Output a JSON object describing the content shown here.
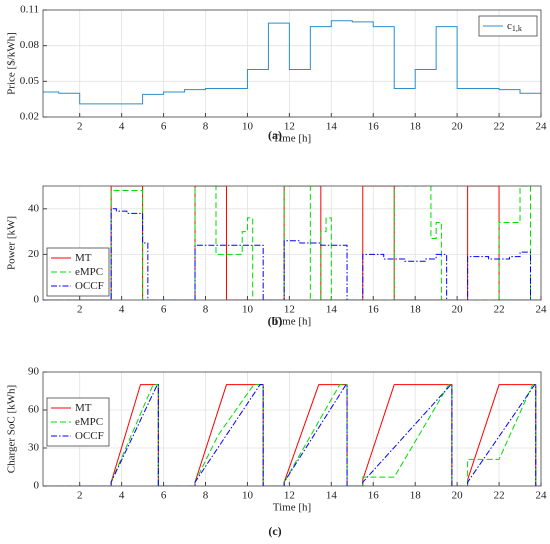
{
  "chart_data": [
    {
      "type": "line",
      "caption": "(a)",
      "xlabel": "Time [h]",
      "ylabel": "Price [$/kWh]",
      "xlim": [
        0.25,
        24
      ],
      "xticks": [
        2,
        4,
        6,
        8,
        10,
        12,
        14,
        16,
        18,
        20,
        22,
        24
      ],
      "ylim": [
        0.02,
        0.11
      ],
      "yticks": [
        0.02,
        0.05,
        0.08,
        0.11
      ],
      "grid": true,
      "legend_loc": "upper right",
      "series": [
        {
          "name": "c",
          "subscript": "1,k",
          "color": "#2c8fc9",
          "linestyle": "solid",
          "drawstyle": "steps-post",
          "x": [
            0,
            1,
            2,
            3,
            4,
            5,
            6,
            7,
            8,
            9,
            10,
            11,
            12,
            13,
            14,
            15,
            16,
            17,
            18,
            19,
            20,
            21,
            22,
            23
          ],
          "values": [
            0.041,
            0.04,
            0.031,
            0.031,
            0.031,
            0.039,
            0.041,
            0.043,
            0.044,
            0.044,
            0.06,
            0.099,
            0.06,
            0.096,
            0.101,
            0.1,
            0.096,
            0.044,
            0.06,
            0.096,
            0.044,
            0.044,
            0.043,
            0.04
          ]
        }
      ]
    },
    {
      "type": "line",
      "caption": "(b)",
      "xlabel": "Time [h]",
      "ylabel": "Power [kW]",
      "xlim": [
        0.25,
        24
      ],
      "xticks": [
        2,
        4,
        6,
        8,
        10,
        12,
        14,
        16,
        18,
        20,
        22,
        24
      ],
      "ylim": [
        0,
        50
      ],
      "yticks": [
        0,
        20,
        40
      ],
      "grid": true,
      "legend_loc": "lower left",
      "series": [
        {
          "name": "MT",
          "color": "#ff0000",
          "linestyle": "solid",
          "drawstyle": "steps-post",
          "x": [
            0.25,
            3.5,
            5,
            7.5,
            9,
            11.75,
            13.5,
            15.5,
            17,
            20.5,
            22
          ],
          "values": [
            0,
            50,
            0,
            50,
            0,
            50,
            0,
            50,
            0,
            50,
            0
          ]
        },
        {
          "name": "eMPC",
          "color": "#00dd00",
          "linestyle": "dashed",
          "drawstyle": "steps-post",
          "x": [
            0.25,
            3.5,
            5,
            7.5,
            8.5,
            9.75,
            10,
            10.25,
            11.75,
            13,
            13.5,
            13.75,
            14,
            17,
            18.75,
            19,
            19.25,
            22,
            23,
            23.5
          ],
          "values": [
            0,
            48,
            0,
            50,
            20,
            30,
            36,
            0,
            50,
            0,
            30,
            36,
            0,
            50,
            27,
            34,
            0,
            34,
            50,
            0
          ]
        },
        {
          "name": "OCCF",
          "color": "#0000ff",
          "linestyle": "dashdot",
          "drawstyle": "steps-post",
          "x": [
            0.25,
            3.5,
            3.75,
            4.25,
            5,
            5.25,
            7.5,
            10.75,
            11.75,
            12.5,
            13.5,
            14.75,
            15.5,
            16.5,
            17.5,
            18.5,
            19,
            19.5,
            20.5,
            21.5,
            22.5,
            23,
            23.5
          ],
          "values": [
            0,
            40,
            39,
            38,
            25,
            0,
            24,
            0,
            26,
            25,
            24,
            0,
            20,
            18,
            17,
            18,
            20,
            0,
            19,
            18,
            19,
            21,
            0
          ]
        }
      ]
    },
    {
      "type": "line",
      "caption": "(c)",
      "xlabel": "Time [h]",
      "ylabel": "Charger SoC [kWh]",
      "xlim": [
        0.25,
        24
      ],
      "xticks": [
        2,
        4,
        6,
        8,
        10,
        12,
        14,
        16,
        18,
        20,
        22,
        24
      ],
      "ylim": [
        0,
        90
      ],
      "yticks": [
        0,
        30,
        60,
        90
      ],
      "grid": true,
      "legend_loc": "upper left",
      "series": [
        {
          "name": "MT",
          "color": "#ff0000",
          "linestyle": "solid",
          "x": [
            0.25,
            3.5,
            3.5,
            4.9,
            5.75,
            5.75,
            7.5,
            7.5,
            9.0,
            10.75,
            10.75,
            11.75,
            11.75,
            13.4,
            14.75,
            14.75,
            15.5,
            15.5,
            17.0,
            19.75,
            19.75,
            20.5,
            20.5,
            22.0,
            23.75,
            23.75,
            24
          ],
          "values": [
            0,
            0,
            3,
            80,
            80,
            0,
            0,
            3,
            80,
            80,
            0,
            0,
            3,
            80,
            80,
            0,
            0,
            5,
            80,
            80,
            0,
            0,
            5,
            80,
            80,
            0,
            0
          ]
        },
        {
          "name": "eMPC",
          "color": "#00dd00",
          "linestyle": "dashed",
          "x": [
            0.25,
            3.5,
            3.5,
            5.5,
            5.75,
            5.75,
            7.5,
            7.5,
            8.6,
            10.3,
            10.75,
            10.75,
            11.75,
            11.75,
            14.4,
            14.75,
            14.75,
            15.5,
            15.5,
            17,
            19.6,
            19.75,
            19.75,
            20.5,
            20.5,
            22,
            23.6,
            23.75,
            23.75,
            24
          ],
          "values": [
            0,
            0,
            3,
            80,
            80,
            0,
            0,
            3,
            40,
            80,
            80,
            0,
            0,
            3,
            80,
            80,
            0,
            0,
            7,
            7,
            80,
            80,
            0,
            0,
            21,
            21,
            80,
            80,
            0,
            0
          ]
        },
        {
          "name": "OCCF",
          "color": "#0000ff",
          "linestyle": "dashdot",
          "x": [
            0.25,
            3.5,
            3.5,
            5.7,
            5.75,
            5.75,
            7.5,
            7.5,
            10.6,
            10.75,
            10.75,
            11.75,
            11.75,
            14.7,
            14.75,
            14.75,
            15.5,
            15.5,
            19.7,
            19.75,
            19.75,
            20.5,
            20.5,
            23.7,
            23.75,
            23.75,
            24
          ],
          "values": [
            0,
            0,
            3,
            80,
            80,
            0,
            0,
            3,
            80,
            80,
            0,
            0,
            3,
            80,
            80,
            0,
            0,
            3,
            80,
            80,
            0,
            0,
            3,
            80,
            80,
            0,
            0
          ]
        }
      ]
    }
  ]
}
